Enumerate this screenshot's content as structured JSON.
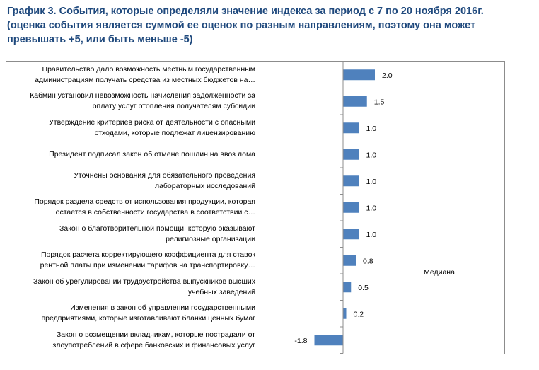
{
  "title": "График 3. События, которые определяли значение индекса за период с 7 по 20 ноября 2016г.\n(оценка события является суммой ее оценок по разным направлениям, поэтому она может\nпревышать +5, или быть меньше -5)",
  "chart_data": {
    "type": "bar",
    "orientation": "horizontal",
    "categories": [
      "Правительство дало возможность местным государственным\nадминистрациям получать средства из местных бюджетов на…",
      "Кабмин установил невозможность начисления задолженности за\nоплату услуг отопления получателям субсидии",
      "Утверждение критериев риска от деятельности с опасными\nотходами, которые подлежат лицензированию",
      "Президент подписал закон об отмене пошлин на ввоз лома",
      "Уточнены основания для обязательного проведения\nлабораторных исследований",
      "Порядок раздела средств от использования продукции, которая\nостается в собственности государства в соответствии с…",
      "Закон о благотворительной помощи, которую оказывают\nрелигиозные организации",
      "Порядок расчета корректирующего коэффициента для ставок\nрентной платы при изменении тарифов на транспортировку…",
      "Закон об урегулировании трудоустройства выпускников высших\nучебных заведений",
      "Изменения в закон об управлении государственными\nпредприятиями, которые изготавливают бланки ценных бумаг",
      "Закон о возмещении вкладчикам, которые пострадали от\nзлоупотреблений в сфере банковских и финансовых услуг"
    ],
    "series": [
      {
        "name": "Медиана",
        "values": [
          2.0,
          1.5,
          1.0,
          1.0,
          1.0,
          1.0,
          1.0,
          0.8,
          0.5,
          0.2,
          -1.8
        ],
        "labels": [
          "2.0",
          "1.5",
          "1.0",
          "1.0",
          "1.0",
          "1.0",
          "1.0",
          "0.8",
          "0.5",
          "0.2",
          "-1.8"
        ]
      }
    ],
    "xlim": [
      -1.8,
      2.0
    ],
    "legend_position": "right",
    "bar_color": "#4f81bd",
    "axis_color": "#8c8c8c"
  }
}
